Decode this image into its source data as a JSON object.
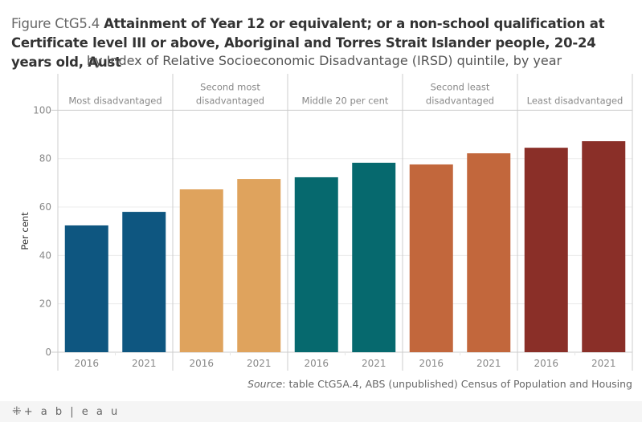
{
  "title": {
    "figure_number": "Figure CtG5.4",
    "text": "Attainment of Year 12 or equivalent; or a non-school qualification at Certificate level III or above, Aboriginal and Torres Strait Islander people, 20-24 years old, Aust",
    "subtitle": "by Index of Relative Socioeconomic Disadvantage (IRSD) quintile, by year"
  },
  "source": {
    "label": "Source",
    "text": ": table CtG5A.4, ABS (unpublished) Census of Population and Housing"
  },
  "footer": {
    "logo_text": "+ a b | e a u",
    "logo_icon": "tableau-cross-icon"
  },
  "chart_data": {
    "type": "bar",
    "title": "Figure CtG5.4 Attainment of Year 12 or equivalent; or a non-school qualification at Certificate level III or above, Aboriginal and Torres Strait Islander people, 20-24 years old, Aust",
    "subtitle": "by Index of Relative Socioeconomic Disadvantage (IRSD) quintile, by year",
    "xlabel": "",
    "ylabel": "Per cent",
    "ylim": [
      0,
      100
    ],
    "yticks": [
      0,
      20,
      40,
      60,
      80,
      100
    ],
    "grid": true,
    "legend": "none",
    "panels": [
      {
        "label_lines": [
          "Most disadvantaged"
        ],
        "color": "#0e5680",
        "categories": [
          "2016",
          "2021"
        ],
        "values": [
          52.4,
          58.0
        ]
      },
      {
        "label_lines": [
          "Second most",
          "disadvantaged"
        ],
        "color": "#dfa35d",
        "categories": [
          "2016",
          "2021"
        ],
        "values": [
          67.3,
          71.6
        ]
      },
      {
        "label_lines": [
          "Middle 20 per cent"
        ],
        "color": "#06696e",
        "categories": [
          "2016",
          "2021"
        ],
        "values": [
          72.3,
          78.3
        ]
      },
      {
        "label_lines": [
          "Second least",
          "disadvantaged"
        ],
        "color": "#c2673c",
        "categories": [
          "2016",
          "2021"
        ],
        "values": [
          77.6,
          82.2
        ]
      },
      {
        "label_lines": [
          "Least disadvantaged"
        ],
        "color": "#8a2f28",
        "categories": [
          "2016",
          "2021"
        ],
        "values": [
          84.5,
          87.2
        ]
      }
    ]
  }
}
